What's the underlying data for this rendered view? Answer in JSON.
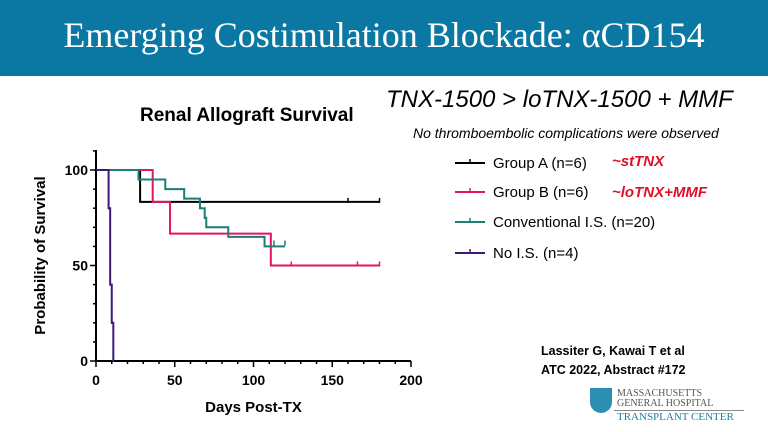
{
  "header": {
    "title": "Emerging Costimulation Blockade: αCD154"
  },
  "headline": "TNX-1500 > loTNX-1500 + MMF",
  "subheadline": "No thromboembolic complications were observed",
  "annotations": {
    "group_a": "~stTNX",
    "group_b": "~loTNX+MMF"
  },
  "citation": {
    "line1": "Lassiter G, Kawai T et al",
    "line2": "ATC 2022, Abstract #172"
  },
  "logo": {
    "line1": "MASSACHUSETTS",
    "line2": "GENERAL HOSPITAL",
    "line3": "TRANSPLANT CENTER",
    "seal": "MGH"
  },
  "chart_data": {
    "type": "line",
    "subtype": "kaplan-meier step",
    "title": "Renal Allograft Survival",
    "xlabel": "Days Post-TX",
    "ylabel": "Probability of Survival",
    "xlim": [
      0,
      200
    ],
    "ylim": [
      0,
      100
    ],
    "xticks": [
      "0",
      "50",
      "100",
      "150",
      "200"
    ],
    "yticks": [
      "0",
      "50",
      "100"
    ],
    "legend_position": "right",
    "series": [
      {
        "name": "Group A (n=6)",
        "color": "#000000",
        "steps": [
          [
            0,
            100
          ],
          [
            28,
            83.3
          ],
          [
            180,
            83.3
          ]
        ],
        "censored": [
          [
            160,
            83.3
          ],
          [
            180,
            83.3
          ]
        ]
      },
      {
        "name": "Group B (n=6)",
        "color": "#e6155f",
        "steps": [
          [
            0,
            100
          ],
          [
            36,
            83.3
          ],
          [
            47,
            66.7
          ],
          [
            111,
            50
          ],
          [
            180,
            50
          ]
        ],
        "censored": [
          [
            36,
            83.3
          ],
          [
            124,
            50
          ],
          [
            166,
            50
          ],
          [
            180,
            50
          ]
        ]
      },
      {
        "name": "Conventional I.S. (n=20)",
        "color": "#1a7f78",
        "steps": [
          [
            0,
            100
          ],
          [
            27,
            95
          ],
          [
            44,
            90
          ],
          [
            56,
            85
          ],
          [
            66,
            80
          ],
          [
            69,
            75
          ],
          [
            70,
            70
          ],
          [
            84,
            65
          ],
          [
            107,
            60
          ],
          [
            120,
            60
          ]
        ],
        "censored": [
          [
            27,
            96
          ],
          [
            66,
            80
          ],
          [
            69,
            75
          ],
          [
            113,
            61
          ],
          [
            120,
            61
          ]
        ]
      },
      {
        "name": "No I.S. (n=4)",
        "color": "#3d1a78",
        "steps": [
          [
            0,
            100
          ],
          [
            8,
            80
          ],
          [
            9,
            40
          ],
          [
            10,
            20
          ],
          [
            11,
            0
          ]
        ],
        "censored": [
          [
            8,
            80
          ],
          [
            9,
            40
          ],
          [
            10,
            20
          ],
          [
            11,
            0
          ]
        ]
      }
    ]
  }
}
